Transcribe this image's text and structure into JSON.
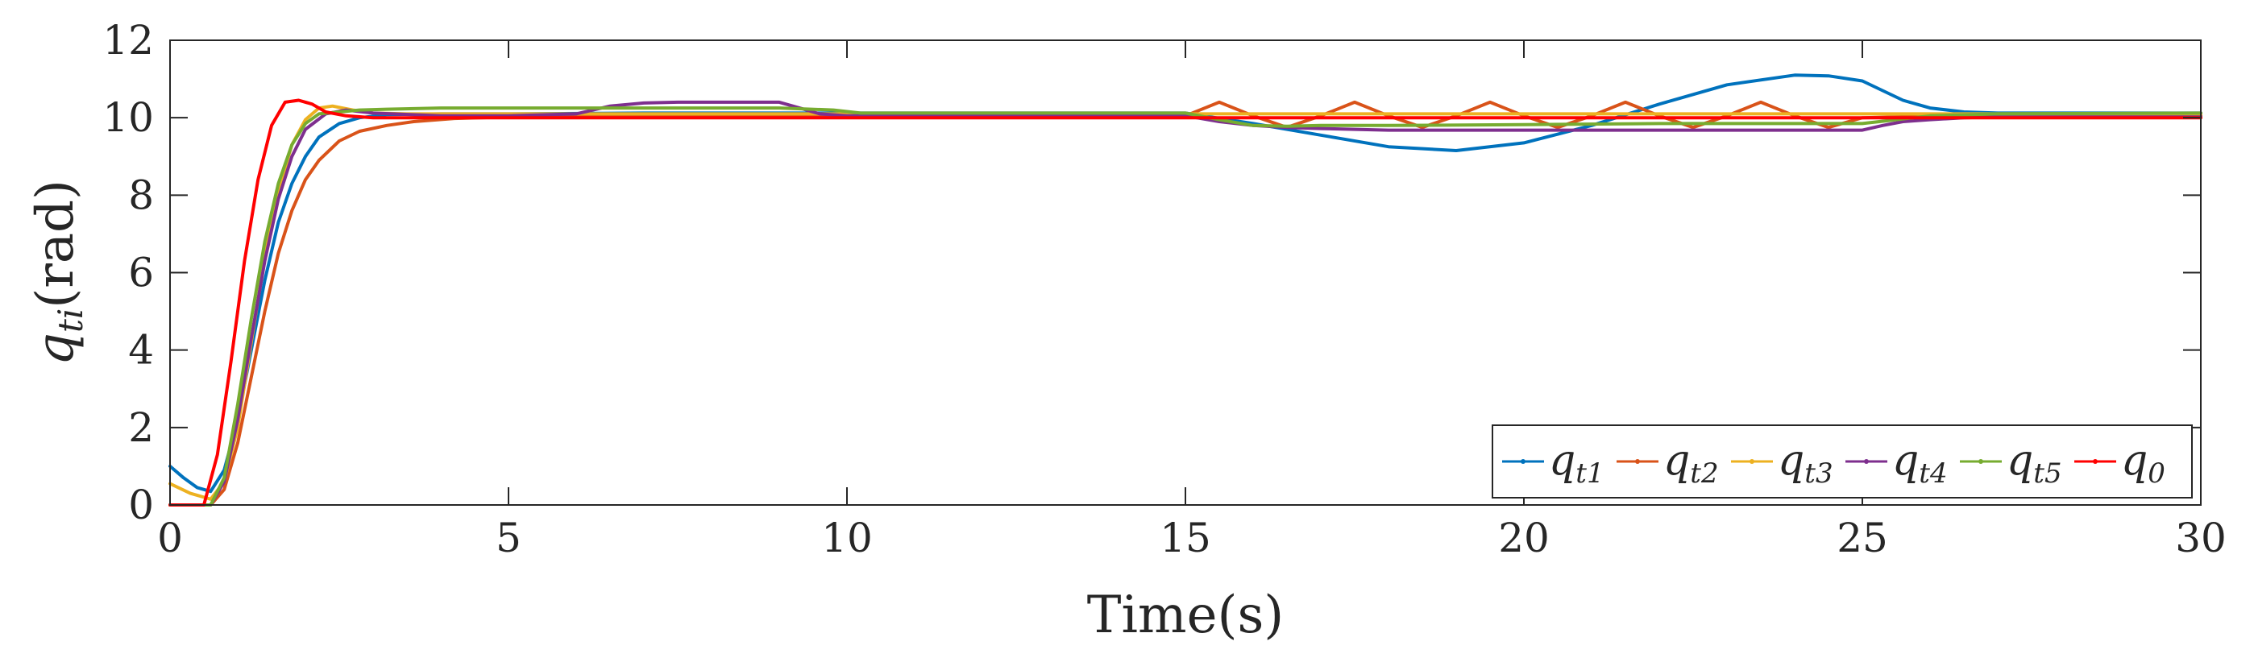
{
  "chart_data": {
    "type": "line",
    "xlabel": "Time(s)",
    "ylabel": {
      "base": "q",
      "sub": "ti",
      "suffix": "(rad)"
    },
    "xlim": [
      0,
      30
    ],
    "ylim": [
      0,
      12
    ],
    "xticks": [
      0,
      5,
      10,
      15,
      20,
      25,
      30
    ],
    "yticks": [
      0,
      2,
      4,
      6,
      8,
      10,
      12
    ],
    "xtick_labels": [
      "0",
      "5",
      "10",
      "15",
      "20",
      "25",
      "30"
    ],
    "ytick_labels": [
      "0",
      "2",
      "4",
      "6",
      "8",
      "10",
      "12"
    ],
    "grid": false,
    "legend_placement": "bottom-right",
    "series": [
      {
        "name": "q_t1",
        "label_base": "q",
        "label_sub": "t1",
        "color": "#0072BD",
        "x": [
          0,
          0.2,
          0.4,
          0.6,
          0.8,
          1,
          1.2,
          1.4,
          1.6,
          1.8,
          2,
          2.2,
          2.5,
          2.8,
          3.2,
          4,
          5,
          7,
          9,
          10,
          12,
          15,
          16,
          17,
          18,
          19,
          20,
          21,
          22,
          23,
          24,
          24.5,
          25,
          25.3,
          25.6,
          26,
          26.5,
          27,
          28,
          30
        ],
        "y": [
          1.0,
          0.7,
          0.45,
          0.35,
          0.9,
          2.2,
          4.0,
          5.8,
          7.3,
          8.3,
          9.0,
          9.5,
          9.85,
          10.0,
          10.08,
          10.1,
          10.1,
          10.12,
          10.12,
          10.12,
          10.12,
          10.12,
          9.85,
          9.55,
          9.25,
          9.15,
          9.35,
          9.8,
          10.35,
          10.85,
          11.1,
          11.08,
          10.95,
          10.7,
          10.45,
          10.25,
          10.15,
          10.12,
          10.12,
          10.12
        ]
      },
      {
        "name": "q_t2",
        "label_base": "q",
        "label_sub": "t2",
        "color": "#D95319",
        "x": [
          0,
          0.6,
          0.8,
          1.0,
          1.2,
          1.4,
          1.6,
          1.8,
          2.0,
          2.2,
          2.5,
          2.8,
          3.2,
          3.6,
          4.2,
          5,
          7,
          10,
          15,
          15.5,
          16,
          16.5,
          17,
          17.5,
          18,
          18.5,
          19,
          19.5,
          20,
          20.5,
          21,
          21.5,
          22,
          22.5,
          23,
          23.5,
          24,
          24.5,
          25,
          25.5,
          26,
          30
        ],
        "y": [
          0,
          0,
          0.4,
          1.6,
          3.3,
          5.0,
          6.5,
          7.6,
          8.4,
          8.9,
          9.4,
          9.65,
          9.8,
          9.9,
          9.98,
          10.02,
          10.05,
          10.05,
          10.05,
          10.4,
          10.05,
          9.75,
          10.05,
          10.4,
          10.05,
          9.75,
          10.05,
          10.4,
          10.05,
          9.75,
          10.05,
          10.4,
          10.05,
          9.75,
          10.05,
          10.4,
          10.05,
          9.75,
          10.0,
          10.02,
          10.05,
          10.05
        ]
      },
      {
        "name": "q_t3",
        "label_base": "q",
        "label_sub": "t3",
        "color": "#EDB120",
        "x": [
          0,
          0.3,
          0.6,
          0.8,
          1.0,
          1.2,
          1.4,
          1.6,
          1.8,
          2.0,
          2.2,
          2.4,
          2.7,
          3.0,
          3.5,
          4,
          5,
          10,
          15,
          30
        ],
        "y": [
          0.55,
          0.3,
          0.15,
          0.6,
          2.0,
          4.2,
          6.4,
          8.1,
          9.3,
          9.95,
          10.25,
          10.3,
          10.2,
          10.12,
          10.1,
          10.1,
          10.1,
          10.1,
          10.1,
          10.1
        ]
      },
      {
        "name": "q_t4",
        "label_base": "q",
        "label_sub": "t4",
        "color": "#7E2F8E",
        "x": [
          0,
          0.6,
          0.8,
          1.0,
          1.2,
          1.4,
          1.6,
          1.8,
          2.0,
          2.3,
          2.6,
          3.0,
          4,
          5,
          6,
          6.5,
          7,
          7.5,
          8,
          8.5,
          9,
          9.3,
          9.6,
          10,
          12,
          15,
          15.5,
          16,
          16.5,
          17,
          17.5,
          18,
          20,
          22,
          24,
          25,
          25.3,
          25.6,
          26,
          26.5,
          27,
          30
        ],
        "y": [
          0,
          0,
          0.6,
          2.2,
          4.3,
          6.3,
          7.9,
          9.0,
          9.7,
          10.1,
          10.2,
          10.12,
          10.05,
          10.05,
          10.1,
          10.3,
          10.38,
          10.4,
          10.4,
          10.4,
          10.4,
          10.25,
          10.1,
          10.05,
          10.05,
          10.05,
          9.9,
          9.8,
          9.75,
          9.72,
          9.7,
          9.68,
          9.68,
          9.68,
          9.68,
          9.68,
          9.8,
          9.9,
          9.95,
          10.0,
          10.02,
          10.02
        ]
      },
      {
        "name": "q_t5",
        "label_base": "q",
        "label_sub": "t5",
        "color": "#77AC30",
        "x": [
          0,
          0.6,
          0.8,
          1.0,
          1.2,
          1.4,
          1.6,
          1.8,
          2.0,
          2.2,
          2.5,
          2.8,
          3.2,
          4,
          5,
          7,
          9,
          9.8,
          10.2,
          12,
          15,
          15.5,
          16,
          16.5,
          17,
          18,
          20,
          22,
          24,
          25,
          25.5,
          26,
          27,
          30
        ],
        "y": [
          0,
          0,
          0.7,
          2.6,
          4.8,
          6.8,
          8.3,
          9.3,
          9.85,
          10.1,
          10.15,
          10.2,
          10.22,
          10.25,
          10.25,
          10.25,
          10.25,
          10.2,
          10.12,
          10.12,
          10.12,
          9.95,
          9.8,
          9.78,
          9.8,
          9.8,
          9.82,
          9.85,
          9.85,
          9.85,
          9.95,
          10.05,
          10.1,
          10.12
        ]
      },
      {
        "name": "q_0",
        "label_base": "q",
        "label_sub": "0",
        "color": "#FF0000",
        "x": [
          0,
          0.5,
          0.7,
          0.9,
          1.1,
          1.3,
          1.5,
          1.7,
          1.9,
          2.1,
          2.3,
          2.6,
          3.0,
          3.5,
          4,
          5,
          10,
          15,
          20,
          25,
          30
        ],
        "y": [
          0,
          0,
          1.3,
          3.7,
          6.3,
          8.4,
          9.8,
          10.4,
          10.45,
          10.35,
          10.15,
          10.05,
          10.0,
          10.0,
          10.0,
          10.0,
          10.0,
          10.0,
          10.0,
          10.0,
          10.0
        ]
      }
    ]
  }
}
